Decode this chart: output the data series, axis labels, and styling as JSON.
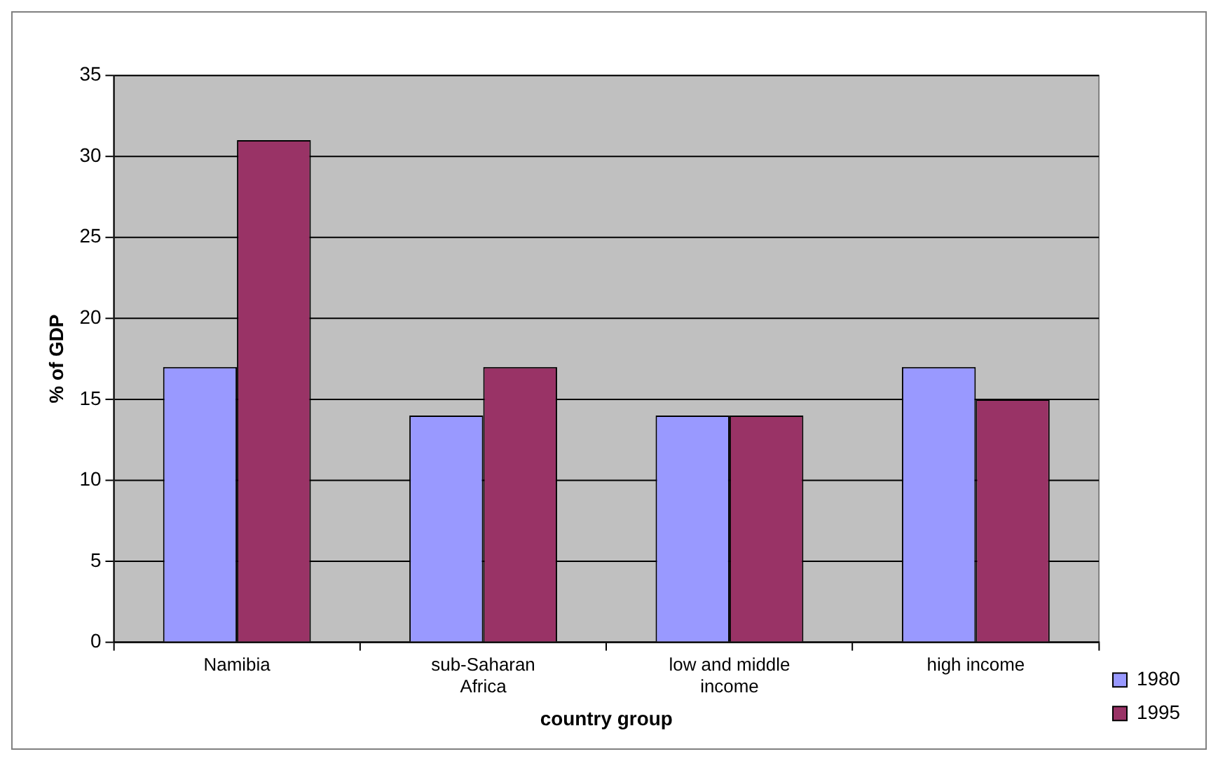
{
  "chart_data": {
    "type": "bar",
    "xlabel": "country group",
    "ylabel": "% of GDP",
    "categories": [
      "Namibia",
      "sub-Saharan Africa",
      "low and middle income",
      "high income"
    ],
    "series": [
      {
        "name": "1980",
        "color": "#9999ff",
        "values": [
          17,
          14,
          14,
          17
        ]
      },
      {
        "name": "1995",
        "color": "#993366",
        "values": [
          31,
          17,
          14,
          15
        ]
      }
    ],
    "ylim": [
      0,
      35
    ],
    "yticks": [
      0,
      5,
      10,
      15,
      20,
      25,
      30,
      35
    ],
    "grid": "y",
    "legend": "right"
  }
}
